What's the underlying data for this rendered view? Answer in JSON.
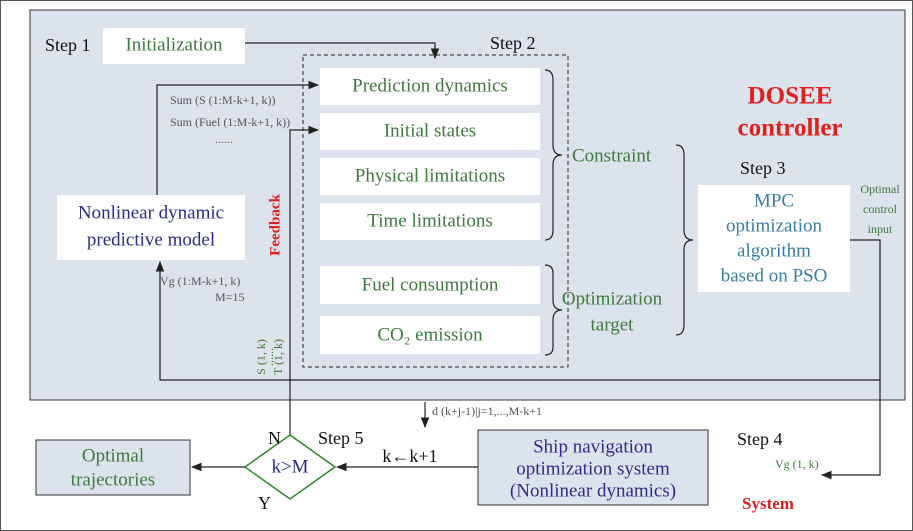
{
  "step1": "Step 1",
  "initialization": "Initialization",
  "step2": "Step 2",
  "controller": [
    "DOSEE",
    "controller"
  ],
  "blocks": [
    "Prediction dynamics",
    "Initial states",
    "Physical limitations",
    "Time limitations",
    "Fuel consumption",
    "CO₂ emission"
  ],
  "constraint": "Constraint",
  "optimization_target": [
    "Optimization",
    "target"
  ],
  "step3": "Step 3",
  "mpc": [
    "MPC",
    "optimization",
    "algorithm",
    "based on PSO"
  ],
  "optimal_control_input": [
    "Optimal",
    "control",
    "input"
  ],
  "model": [
    "Nonlinear dynamic",
    "predictive model"
  ],
  "sum_s": "Sum (S (1:M-k+1, k))",
  "sum_fuel": "Sum (Fuel (1:M-k+1, k))",
  "dots1": "......",
  "feedback": "Feedback",
  "vg_range": "Vg (1:M-k+1, k)",
  "m": "M=15",
  "s1k": "S (1, k)",
  "dots2": "......",
  "t1k": "T (1, k)",
  "disturbance": "d (k+j-1)|j=1,...,M-k+1",
  "step4": "Step 4",
  "vg1k": "Vg (1, k)",
  "ship": [
    "Ship navigation",
    "optimization system",
    "(Nonlinear dynamics)"
  ],
  "system": "System",
  "step5": "Step 5",
  "n": "N",
  "y": "Y",
  "condition": "k>M",
  "increment": "k←k+1",
  "optimal_trajectories": [
    "Optimal",
    "trajectories"
  ]
}
